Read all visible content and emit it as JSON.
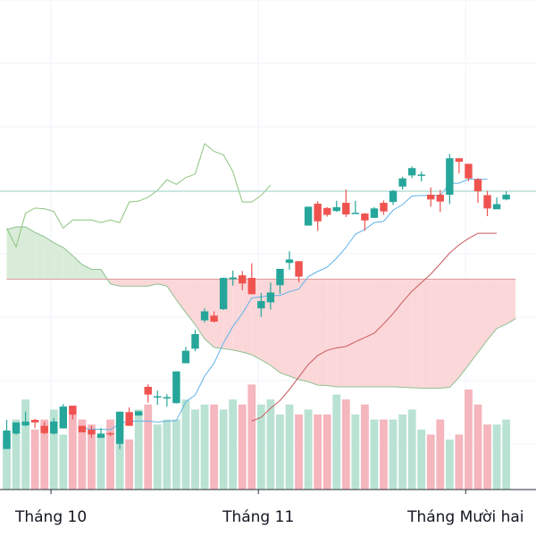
{
  "chart_data": {
    "type": "candlestick",
    "x_axis": {
      "tick_labels": [
        {
          "label": "Tháng 10",
          "index": 5
        },
        {
          "label": "Tháng 11",
          "index": 27
        },
        {
          "label": "Tháng Mười hai",
          "index": 49
        }
      ]
    },
    "y_range": [
      0,
      100
    ],
    "grid": true,
    "price_line": 60.6,
    "colors": {
      "up": "#26a69a",
      "down": "#ef5350",
      "up_volume": "#b9e2d3",
      "down_volume": "#f5b6bd",
      "tenkan": "#5fb3e8",
      "kijun": "#c9595c",
      "span_a": "#8fc18f",
      "span_b": "#df9a9c",
      "cloud_bull": "#d9ecd9",
      "cloud_bear": "#fbd7d9",
      "chikou": "#8cc47c",
      "price_line": "#9fd6c6"
    },
    "series": [
      {
        "name": "ohlc",
        "rows": [
          [
            0.5,
            4.8,
            7.3,
            4.5
          ],
          [
            4.1,
            6.7,
            6.7,
            3.8
          ],
          [
            6.0,
            6.9,
            9.2,
            5.8
          ],
          [
            7.3,
            6.7,
            7.5,
            5.4
          ],
          [
            5.9,
            4.2,
            6.8,
            3.9
          ],
          [
            4.1,
            6.9,
            7.7,
            3.9
          ],
          [
            5.3,
            10.4,
            11.0,
            5.3
          ],
          [
            10.6,
            8.5,
            10.6,
            7.4
          ],
          [
            5.9,
            4.4,
            5.9,
            4.4
          ],
          [
            5.0,
            3.9,
            5.9,
            3.1
          ],
          [
            3.1,
            4.1,
            5.4,
            3.1
          ],
          [
            4.2,
            3.9,
            4.4,
            3.5
          ],
          [
            1.7,
            9.2,
            9.2,
            0.5
          ],
          [
            9.1,
            5.9,
            10.2,
            5.9
          ],
          [
            8.3,
            9.3,
            9.3,
            8.3
          ],
          [
            15.0,
            13.2,
            15.6,
            11.3
          ],
          [
            12.8,
            12.8,
            14.1,
            10.8
          ],
          [
            12.6,
            12.6,
            13.3,
            10.4
          ],
          [
            11.2,
            18.6,
            18.6,
            11.1
          ],
          [
            20.5,
            23.4,
            24.3,
            20.5
          ],
          [
            23.9,
            27.3,
            28.3,
            23.3
          ],
          [
            30.5,
            32.6,
            33.3,
            30.0
          ],
          [
            31.6,
            30.2,
            32.6,
            30.0
          ],
          [
            33.1,
            40.4,
            40.5,
            32.9
          ],
          [
            40.1,
            40.5,
            42.1,
            38.6
          ],
          [
            41.0,
            39.1,
            42.0,
            37.5
          ],
          [
            40.4,
            36.6,
            43.8,
            36.6
          ],
          [
            33.3,
            35.0,
            36.9,
            31.3
          ],
          [
            34.7,
            37.0,
            39.3,
            33.0
          ],
          [
            38.7,
            42.5,
            42.5,
            36.7
          ],
          [
            43.9,
            44.7,
            46.6,
            42.3
          ],
          [
            44.3,
            40.7,
            44.3,
            39.4
          ],
          [
            52.6,
            57.0,
            57.0,
            52.6
          ],
          [
            57.7,
            53.6,
            58.3,
            51.4
          ],
          [
            56.7,
            55.1,
            56.9,
            54.7
          ],
          [
            56.0,
            56.9,
            58.4,
            55.8
          ],
          [
            57.9,
            55.2,
            61.0,
            54.6
          ],
          [
            55.5,
            55.6,
            58.4,
            55.3
          ],
          [
            55.4,
            53.8,
            55.5,
            51.4
          ],
          [
            54.4,
            56.6,
            56.9,
            54.4
          ],
          [
            57.9,
            55.9,
            58.5,
            55.1
          ],
          [
            58.1,
            60.7,
            60.9,
            57.4
          ],
          [
            61.7,
            63.6,
            64.0,
            61.0
          ],
          [
            64.3,
            66.0,
            66.4,
            63.7
          ],
          [
            64.5,
            64.5,
            65.2,
            62.9
          ],
          [
            59.8,
            58.7,
            61.5,
            57.0
          ],
          [
            59.8,
            58.2,
            60.9,
            55.8
          ],
          [
            59.8,
            68.3,
            69.3,
            57.6
          ],
          [
            68.3,
            67.5,
            68.3,
            64.8
          ],
          [
            67.0,
            63.6,
            67.0,
            63.0
          ],
          [
            63.4,
            60.6,
            63.7,
            57.9
          ],
          [
            59.7,
            56.6,
            60.7,
            54.8
          ],
          [
            56.4,
            57.6,
            59.2,
            56.8
          ],
          [
            58.7,
            59.8,
            60.6,
            58.5
          ]
        ]
      },
      {
        "name": "volume",
        "values": [
          10,
          14,
          18,
          12,
          14,
          16,
          11,
          15,
          14,
          13,
          11,
          14,
          14,
          10,
          16,
          17,
          13,
          14,
          14,
          18,
          16,
          17,
          17,
          16,
          18,
          17,
          21,
          17,
          18,
          15,
          17,
          15,
          16,
          15,
          15,
          19,
          18,
          15,
          17,
          14,
          14,
          14,
          15,
          16,
          12,
          11,
          14,
          10,
          11,
          20,
          17,
          13,
          13,
          14
        ]
      },
      {
        "name": "tenkan",
        "values": [
          null,
          null,
          null,
          null,
          null,
          null,
          null,
          null,
          5.4,
          5.1,
          5.1,
          5.0,
          6.4,
          7.0,
          7.0,
          7.0,
          6.8,
          7.0,
          7.1,
          11.5,
          13.1,
          17.5,
          20.5,
          25.2,
          29.1,
          32.1,
          35.7,
          36.0,
          36.3,
          36.3,
          37.2,
          37.8,
          40.7,
          41.9,
          42.9,
          45.0,
          47.5,
          50.6,
          51.7,
          53.3,
          53.6,
          56.2,
          57.5,
          59.5,
          59.6,
          59.6,
          59.6,
          62.4,
          62.5,
          63.4,
          63.4,
          63.4,
          null,
          null
        ]
      },
      {
        "name": "kijun",
        "values": [
          null,
          null,
          null,
          null,
          null,
          null,
          null,
          null,
          null,
          null,
          null,
          null,
          null,
          null,
          null,
          null,
          null,
          null,
          null,
          null,
          null,
          null,
          null,
          null,
          null,
          null,
          7.0,
          7.9,
          10.0,
          11.8,
          14.4,
          17.3,
          20.2,
          22.3,
          23.5,
          24.1,
          24.4,
          25.5,
          26.5,
          27.5,
          29.7,
          32.1,
          34.8,
          37.3,
          39.3,
          41.3,
          43.7,
          46.2,
          48.1,
          49.6,
          50.8,
          50.8,
          50.8,
          null
        ]
      },
      {
        "name": "span_a",
        "values": [
          51.7,
          52.3,
          52.3,
          51.0,
          50.0,
          48.6,
          47.5,
          45.6,
          43.5,
          42.4,
          42.4,
          39.0,
          38.5,
          38.5,
          38.5,
          38.5,
          39.0,
          38.5,
          35.3,
          32.3,
          29.5,
          26.2,
          24.2,
          23.9,
          23.6,
          23.1,
          22.5,
          21.3,
          20.0,
          18.3,
          17.5,
          16.7,
          16.2,
          15.4,
          15.3,
          15.0,
          15.0,
          15.0,
          15.0,
          15.0,
          15.0,
          15.0,
          14.9,
          14.8,
          14.7,
          14.7,
          14.7,
          14.9,
          17.2,
          20.1,
          23.0,
          25.9,
          28.6,
          29.6,
          30.9
        ]
      },
      {
        "name": "span_b",
        "values": [
          40.1,
          40.1,
          40.1,
          40.1,
          40.1,
          40.1,
          40.1,
          40.1,
          40.1,
          40.1,
          40.1,
          40.1,
          40.1,
          40.1,
          40.1,
          40.1,
          40.1,
          40.1,
          40.1,
          40.1,
          40.1,
          40.1,
          40.1,
          40.1,
          40.1,
          40.1,
          40.1,
          40.1,
          40.1,
          40.1,
          40.1,
          40.1,
          40.1,
          40.1,
          40.1,
          40.1,
          40.1,
          40.1,
          40.1,
          40.1,
          40.1,
          40.1,
          40.1,
          40.1,
          40.1,
          40.1,
          40.1,
          40.1,
          40.1,
          40.1,
          40.1,
          40.1,
          40.1,
          40.1,
          40.1
        ]
      },
      {
        "name": "chikou",
        "values": [
          52,
          47.6,
          55.5,
          56.7,
          56.5,
          55.9,
          52,
          53.9,
          53.9,
          53.9,
          53.3,
          53.9,
          53.3,
          58.1,
          58.3,
          59.2,
          60.8,
          63.3,
          62.2,
          63.8,
          64.6,
          71.7,
          69.9,
          69.1,
          65.2,
          58.1,
          58.1,
          59.6,
          62.1
        ],
        "start_index": 0
      }
    ]
  }
}
